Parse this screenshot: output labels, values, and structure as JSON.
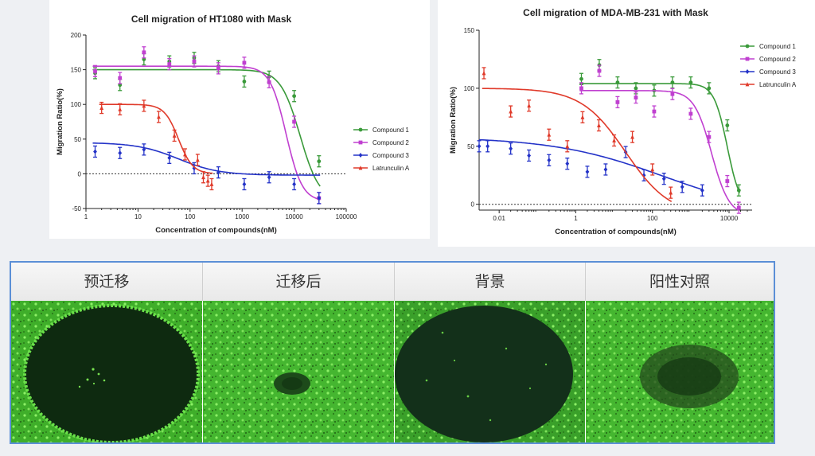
{
  "chart_data": [
    {
      "type": "line",
      "title": "Cell migration of HT1080 with Mask",
      "xlabel": "Concentration of compounds(nM)",
      "ylabel": "Migration Ratio(%)",
      "xscale": "log",
      "xlim": [
        1,
        100000
      ],
      "ylim": [
        -50,
        200
      ],
      "x_ticks": [
        "1",
        "10",
        "100",
        "1000",
        "10000",
        "100000"
      ],
      "y_ticks": [
        "200",
        "150",
        "100",
        "50",
        "0",
        "-50"
      ],
      "legend_position": "right",
      "series": [
        {
          "name": "Compound 1",
          "color": "#3a9a3a",
          "marker": "circle",
          "x": [
            1.5,
            4.5,
            13,
            40,
            120,
            350,
            1100,
            3300,
            10000,
            30000
          ],
          "y": [
            145,
            128,
            165,
            162,
            167,
            155,
            133,
            140,
            112,
            18
          ],
          "curve": {
            "top": 150,
            "bottom": -40,
            "ec50": 13000,
            "hill": 2.3
          }
        },
        {
          "name": "Compound 2",
          "color": "#c040d0",
          "marker": "square",
          "x": [
            1.5,
            4.5,
            13,
            40,
            120,
            350,
            1100,
            3300,
            10000,
            30000
          ],
          "y": [
            148,
            138,
            175,
            158,
            162,
            152,
            160,
            132,
            75,
            -35
          ],
          "curve": {
            "top": 155,
            "bottom": -40,
            "ec50": 7000,
            "hill": 2.8
          }
        },
        {
          "name": "Compound 3",
          "color": "#2433c8",
          "marker": "diamond",
          "x": [
            1.5,
            4.5,
            13,
            40,
            120,
            350,
            1100,
            3300,
            10000,
            30000
          ],
          "y": [
            32,
            30,
            35,
            23,
            8,
            2,
            -15,
            -5,
            -15,
            -35
          ],
          "curve": {
            "top": 45,
            "bottom": -2,
            "ec50": 60,
            "hill": 1.1
          }
        },
        {
          "name": "Latrunculin A",
          "color": "#e03a2a",
          "marker": "triangle",
          "x": [
            2,
            4.5,
            13,
            25,
            50,
            80,
            140,
            180,
            220,
            260
          ],
          "y": [
            95,
            93,
            98,
            82,
            55,
            28,
            20,
            -5,
            -10,
            -15
          ],
          "curve": {
            "top": 100,
            "bottom": 0,
            "ec50": 60,
            "hill": 3.2
          }
        }
      ]
    },
    {
      "type": "line",
      "title": "Cell migration of MDA-MB-231 with Mask",
      "xlabel": "Concentration of compounds(nM)",
      "ylabel": "Migration Ratio(%)",
      "xscale": "log",
      "xlim": [
        0.003,
        40000
      ],
      "ylim": [
        -5,
        150
      ],
      "x_ticks": [
        "0.01",
        "1",
        "100",
        "10000"
      ],
      "y_ticks": [
        "150",
        "100",
        "50",
        "0"
      ],
      "legend_position": "top-right",
      "series": [
        {
          "name": "Compound 1",
          "color": "#3a9a3a",
          "marker": "circle",
          "x": [
            1.4,
            4.1,
            12.3,
            37,
            111,
            333,
            1000,
            3000,
            9000,
            18000
          ],
          "y": [
            108,
            120,
            105,
            100,
            98,
            105,
            105,
            100,
            68,
            12
          ],
          "curve": {
            "top": 104,
            "bottom": -5,
            "ec50": 9000,
            "hill": 2.5
          }
        },
        {
          "name": "Compound 2",
          "color": "#c040d0",
          "marker": "square",
          "x": [
            1.4,
            4.1,
            12.3,
            37,
            111,
            333,
            1000,
            3000,
            9000,
            18000
          ],
          "y": [
            100,
            115,
            88,
            92,
            80,
            95,
            78,
            58,
            20,
            -3
          ],
          "curve": {
            "top": 98,
            "bottom": -10,
            "ec50": 3500,
            "hill": 1.9
          }
        },
        {
          "name": "Compound 3",
          "color": "#2433c8",
          "marker": "diamond",
          "x": [
            0.003,
            0.005,
            0.02,
            0.06,
            0.2,
            0.6,
            2,
            6,
            20,
            60,
            200,
            600,
            2000
          ],
          "y": [
            50,
            50,
            48,
            42,
            38,
            35,
            28,
            30,
            45,
            25,
            22,
            15,
            12
          ],
          "curve": {
            "top": 58,
            "bottom": -10,
            "ec50": 200,
            "hill": 0.3
          }
        },
        {
          "name": "Latrunculin A",
          "color": "#e03a2a",
          "marker": "triangle",
          "x": [
            0.004,
            0.02,
            0.06,
            0.2,
            0.6,
            1.5,
            4,
            10,
            30,
            100,
            300
          ],
          "y": [
            113,
            80,
            85,
            60,
            50,
            75,
            68,
            55,
            58,
            30,
            10
          ],
          "curve": {
            "top": 100,
            "bottom": -10,
            "ec50": 20,
            "hill": 0.75
          }
        }
      ]
    }
  ],
  "micrographs": {
    "headers": [
      "预迁移",
      "迁移后",
      "背景",
      "阳性对照"
    ]
  }
}
